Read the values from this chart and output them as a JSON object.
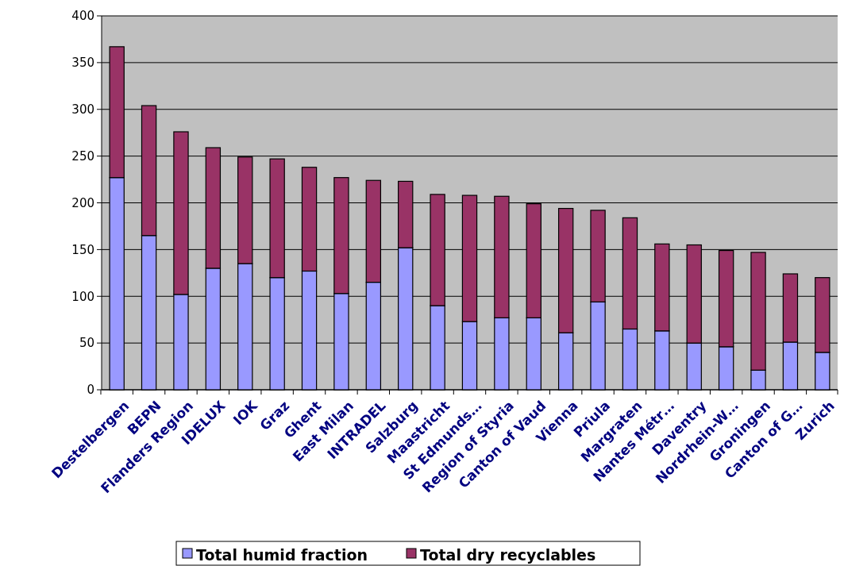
{
  "chart_data": {
    "type": "bar",
    "stacked": true,
    "categories": [
      "Destelbergen",
      "BEPN",
      "Flanders Region",
      "IDELUX",
      "IOK",
      "Graz",
      "Ghent",
      "East Milan",
      "INTRADEL",
      "Salzburg",
      "Maastricht",
      "St Edmunds…",
      "Region of Styria",
      "Canton of Vaud",
      "Vienna",
      "Priula",
      "Margraten",
      "Nantes Métr…",
      "Daventry",
      "Nordrhein-W…",
      "Groningen",
      "Canton of G…",
      "Zurich"
    ],
    "series": [
      {
        "name": "Total humid fraction",
        "color": "#9999ff",
        "values": [
          227,
          165,
          102,
          130,
          135,
          120,
          127,
          103,
          115,
          152,
          90,
          73,
          77,
          77,
          61,
          94,
          65,
          63,
          50,
          46,
          21,
          51,
          40
        ]
      },
      {
        "name": "Total dry recyclables",
        "color": "#993366",
        "values": [
          140,
          139,
          174,
          129,
          114,
          127,
          111,
          124,
          109,
          71,
          119,
          135,
          130,
          122,
          133,
          98,
          119,
          93,
          105,
          103,
          126,
          73,
          80
        ]
      }
    ],
    "ylim": [
      0,
      400
    ],
    "yticks": [
      0,
      50,
      100,
      150,
      200,
      250,
      300,
      350,
      400
    ],
    "grid": "y",
    "legend": "bottom"
  }
}
